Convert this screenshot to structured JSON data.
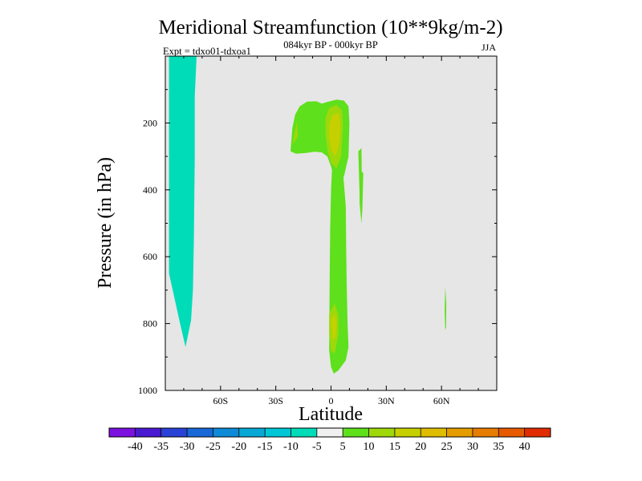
{
  "chart_data": {
    "type": "contour",
    "title": "Meridional Streamfunction (10**9kg/m-2)",
    "subtitle": "084kyr BP - 000kyr BP",
    "season": "JJA",
    "experiment": "Expt = tdxo01-tdxoa1",
    "xlabel": "Latitude",
    "ylabel": "Pressure (in hPa)",
    "xlim": [
      -90,
      90
    ],
    "ylim": [
      1000,
      0
    ],
    "x_ticks": [
      {
        "value": -60,
        "label": "60S"
      },
      {
        "value": -30,
        "label": "30S"
      },
      {
        "value": 0,
        "label": "0"
      },
      {
        "value": 30,
        "label": "30N"
      },
      {
        "value": 60,
        "label": "60N"
      }
    ],
    "y_ticks": [
      {
        "value": 200,
        "label": "200"
      },
      {
        "value": 400,
        "label": "400"
      },
      {
        "value": 600,
        "label": "600"
      },
      {
        "value": 800,
        "label": "800"
      },
      {
        "value": 1000,
        "label": "1000"
      }
    ],
    "background_color": "#e6e6e6",
    "colorbar": {
      "colors": [
        "#7b12de",
        "#4a1ad0",
        "#2a42d6",
        "#1868d8",
        "#0e8ad8",
        "#08a8d6",
        "#00c6d6",
        "#00dcb8",
        "#f0f0f0",
        "#5ee01c",
        "#9ed80a",
        "#c6d000",
        "#e0bc00",
        "#e49c00",
        "#e67c00",
        "#e65a00",
        "#e02c00"
      ],
      "labels": [
        "-40",
        "-35",
        "-30",
        "-25",
        "-20",
        "-15",
        "-10",
        "-5",
        "5",
        "10",
        "15",
        "20",
        "25",
        "30",
        "35",
        "40"
      ]
    },
    "regions": [
      {
        "value": -10,
        "color": "#00dcb8",
        "name": "southern-negative-cell",
        "points": [
          [
            -88,
            0
          ],
          [
            -73,
            0
          ],
          [
            -74,
            120
          ],
          [
            -74,
            300
          ],
          [
            -74.5,
            550
          ],
          [
            -75,
            700
          ],
          [
            -76,
            790
          ],
          [
            -79,
            870
          ],
          [
            -82,
            800
          ],
          [
            -86,
            700
          ],
          [
            -88,
            650
          ]
        ]
      },
      {
        "value": 10,
        "color": "#5ee01c",
        "name": "upper-positive-cell",
        "points": [
          [
            -22,
            285
          ],
          [
            -21,
            215
          ],
          [
            -19.5,
            175
          ],
          [
            -17,
            150
          ],
          [
            -13,
            136
          ],
          [
            -8,
            135
          ],
          [
            -5,
            142
          ],
          [
            -2,
            137
          ],
          [
            3,
            130
          ],
          [
            7,
            133
          ],
          [
            9.5,
            150
          ],
          [
            10,
            200
          ],
          [
            9.5,
            300
          ],
          [
            7,
            360
          ],
          [
            4,
            380
          ],
          [
            2,
            372
          ],
          [
            0,
            330
          ],
          [
            -2,
            300
          ],
          [
            -5,
            288
          ],
          [
            -9,
            286
          ],
          [
            -14,
            290
          ],
          [
            -19,
            292
          ]
        ]
      },
      {
        "value": 10,
        "color": "#5ee01c",
        "name": "equatorial-positive-column",
        "points": [
          [
            0.6,
            330
          ],
          [
            6.5,
            345
          ],
          [
            8,
            450
          ],
          [
            8.2,
            560
          ],
          [
            8.5,
            680
          ],
          [
            9,
            800
          ],
          [
            9.5,
            870
          ],
          [
            8,
            910
          ],
          [
            4,
            940
          ],
          [
            1.5,
            950
          ],
          [
            0,
            930
          ],
          [
            -1,
            880
          ],
          [
            -0.8,
            700
          ],
          [
            -0.5,
            520
          ],
          [
            0,
            400
          ]
        ]
      },
      {
        "value": 10,
        "color": "#5ee01c",
        "name": "upper-right-positive-strip",
        "points": [
          [
            14.8,
            285
          ],
          [
            16.5,
            275
          ],
          [
            16.8,
            400
          ],
          [
            16.3,
            440
          ],
          [
            15.5,
            415
          ]
        ]
      },
      {
        "value": 10,
        "color": "#5ee01c",
        "name": "mid-right-positive-strip",
        "points": [
          [
            15.5,
            340
          ],
          [
            17.5,
            350
          ],
          [
            17,
            460
          ],
          [
            16.5,
            500
          ],
          [
            15.5,
            440
          ]
        ]
      },
      {
        "value": 10,
        "color": "#5ee01c",
        "name": "northern-positive-sliver",
        "points": [
          [
            62,
            690
          ],
          [
            62.6,
            740
          ],
          [
            62.5,
            810
          ],
          [
            62,
            820
          ],
          [
            61.7,
            760
          ]
        ]
      },
      {
        "value": 15,
        "color": "#9ed80a",
        "name": "upper-core-15",
        "points": [
          [
            -3,
            185
          ],
          [
            -1,
            155
          ],
          [
            3,
            146
          ],
          [
            6,
            162
          ],
          [
            6.5,
            210
          ],
          [
            5.5,
            300
          ],
          [
            3,
            335
          ],
          [
            0,
            320
          ],
          [
            -2,
            280
          ],
          [
            -3,
            230
          ]
        ]
      },
      {
        "value": 15,
        "color": "#9ed80a",
        "name": "lower-core-15",
        "points": [
          [
            -1,
            770
          ],
          [
            2,
            740
          ],
          [
            4,
            775
          ],
          [
            4,
            830
          ],
          [
            2,
            890
          ],
          [
            0,
            880
          ],
          [
            -1,
            830
          ]
        ]
      },
      {
        "value": 15,
        "color": "#9ed80a",
        "name": "upper-left-15",
        "points": [
          [
            -21,
            265
          ],
          [
            -20,
            235
          ],
          [
            -18.5,
            195
          ],
          [
            -18,
            240
          ]
        ]
      },
      {
        "value": 20,
        "color": "#c6d000",
        "name": "upper-core-20",
        "points": [
          [
            -1,
            205
          ],
          [
            1,
            175
          ],
          [
            4,
            170
          ],
          [
            5,
            205
          ],
          [
            4.5,
            260
          ],
          [
            2.5,
            300
          ],
          [
            0.5,
            285
          ],
          [
            -1,
            245
          ]
        ]
      },
      {
        "value": 20,
        "color": "#c6d000",
        "name": "lower-core-20",
        "points": [
          [
            0,
            790
          ],
          [
            2,
            770
          ],
          [
            3,
            800
          ],
          [
            2.5,
            840
          ],
          [
            1,
            850
          ]
        ]
      }
    ]
  }
}
